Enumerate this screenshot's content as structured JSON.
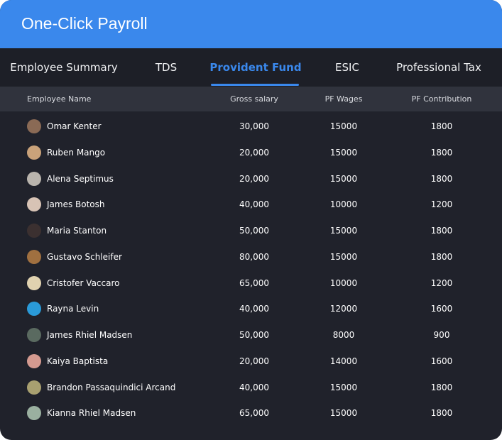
{
  "header": {
    "title": "One-Click Payroll"
  },
  "tabs": [
    "Employee Summary",
    "TDS",
    "Provident Fund",
    "ESIC",
    "Professional Tax"
  ],
  "active_tab": 2,
  "table": {
    "columns": [
      "Employee Name",
      "Gross salary",
      "PF Wages",
      "PF Contribution"
    ],
    "rows": [
      [
        "Omar Kenter",
        "30,000",
        "15000",
        "1800"
      ],
      [
        "Ruben Mango",
        "20,000",
        "15000",
        "1800"
      ],
      [
        "Alena Septimus",
        "20,000",
        "15000",
        "1800"
      ],
      [
        "James Botosh",
        "40,000",
        "10000",
        "1200"
      ],
      [
        "Maria Stanton",
        "50,000",
        "15000",
        "1800"
      ],
      [
        "Gustavo Schleifer",
        "80,000",
        "15000",
        "1800"
      ],
      [
        "Cristofer Vaccaro",
        "65,000",
        "10000",
        "1200"
      ],
      [
        "Rayna Levin",
        "40,000",
        "12000",
        "1600"
      ],
      [
        "James Rhiel Madsen",
        "50,000",
        "8000",
        "900"
      ],
      [
        "Kaiya Baptista",
        "20,000",
        "14000",
        "1600"
      ],
      [
        "Brandon Passaquindici Arcand",
        "40,000",
        "15000",
        "1800"
      ],
      [
        "Kianna Rhiel Madsen",
        "65,000",
        "15000",
        "1800"
      ]
    ]
  }
}
